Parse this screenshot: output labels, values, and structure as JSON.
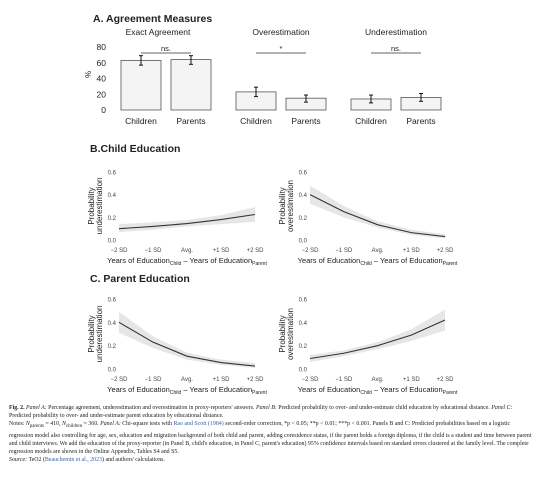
{
  "panel_a": {
    "title": "A. Agreement Measures",
    "y_axis_label": "%",
    "ticks": [
      "0",
      "20",
      "40",
      "60",
      "80"
    ]
  },
  "panel_b": {
    "title": "B.Child Education"
  },
  "panel_c": {
    "title": "C. Parent Education"
  },
  "x_tick_labels": [
    "−2 SD",
    "−1 SD",
    "Avg.",
    "+1 SD",
    "+2 SD"
  ],
  "y_tick_labels": [
    "0.0",
    "0.2",
    "0.4",
    "0.6"
  ],
  "x_label_main": "Years of Education",
  "x_label_sub1": "Child",
  "x_label_mid": " – Years of Education",
  "x_label_sub2": "Parent",
  "ylabel_under_1": "Probability",
  "ylabel_under_2": "underestimation",
  "ylabel_over_1": "Probability",
  "ylabel_over_2": "overestimation",
  "colors": {
    "bar_fill": "#f4f4f4",
    "bar_stroke": "#555555",
    "line": "#333333",
    "ci_band": "#e6e6e6"
  },
  "chart_data": [
    {
      "type": "bar",
      "panel": "A",
      "title": "A. Agreement Measures",
      "ylabel": "%",
      "ylim": [
        0,
        80
      ],
      "groups": [
        {
          "title": "Exact Agreement",
          "categories": [
            "Children",
            "Parents"
          ],
          "values": [
            63,
            64
          ],
          "ci": [
            [
              57,
              69
            ],
            [
              58,
              69
            ]
          ],
          "significance": "ns."
        },
        {
          "title": "Overestimation",
          "categories": [
            "Children",
            "Parents"
          ],
          "values": [
            23,
            15
          ],
          "ci": [
            [
              17,
              29
            ],
            [
              10,
              19
            ]
          ],
          "significance": "*"
        },
        {
          "title": "Underestimation",
          "categories": [
            "Children",
            "Parents"
          ],
          "values": [
            14,
            16
          ],
          "ci": [
            [
              9,
              19
            ],
            [
              11,
              21
            ]
          ],
          "significance": "ns."
        }
      ]
    },
    {
      "type": "line",
      "panel": "B",
      "subplot": "underestimation",
      "x": [
        -2,
        -1,
        0,
        1,
        2
      ],
      "x_tick_labels": [
        "−2 SD",
        "−1 SD",
        "Avg.",
        "+1 SD",
        "+2 SD"
      ],
      "xlabel": "Years of Education Child – Years of Education Parent",
      "ylabel": "Probability underestimation",
      "ylim": [
        0,
        0.6
      ],
      "series": [
        {
          "values": [
            0.1,
            0.12,
            0.145,
            0.18,
            0.225
          ],
          "lower": [
            0.07,
            0.09,
            0.12,
            0.14,
            0.16
          ],
          "upper": [
            0.14,
            0.155,
            0.175,
            0.22,
            0.29
          ]
        }
      ]
    },
    {
      "type": "line",
      "panel": "B",
      "subplot": "overestimation",
      "x": [
        -2,
        -1,
        0,
        1,
        2
      ],
      "x_tick_labels": [
        "−2 SD",
        "−1 SD",
        "Avg.",
        "+1 SD",
        "+2 SD"
      ],
      "xlabel": "Years of Education Child – Years of Education Parent",
      "ylabel": "Probability overestimation",
      "ylim": [
        0,
        0.6
      ],
      "series": [
        {
          "values": [
            0.4,
            0.25,
            0.135,
            0.065,
            0.03
          ],
          "lower": [
            0.32,
            0.2,
            0.11,
            0.045,
            0.015
          ],
          "upper": [
            0.48,
            0.3,
            0.165,
            0.09,
            0.05
          ]
        }
      ]
    },
    {
      "type": "line",
      "panel": "C",
      "subplot": "underestimation",
      "x": [
        -2,
        -1,
        0,
        1,
        2
      ],
      "x_tick_labels": [
        "−2 SD",
        "−1 SD",
        "Avg.",
        "+1 SD",
        "+2 SD"
      ],
      "xlabel": "Years of Education Child – Years of Education Parent",
      "ylabel": "Probability underestimation",
      "ylim": [
        0,
        0.6
      ],
      "series": [
        {
          "values": [
            0.4,
            0.23,
            0.11,
            0.055,
            0.025
          ],
          "lower": [
            0.31,
            0.18,
            0.08,
            0.035,
            0.01
          ],
          "upper": [
            0.49,
            0.28,
            0.14,
            0.08,
            0.05
          ]
        }
      ]
    },
    {
      "type": "line",
      "panel": "C",
      "subplot": "overestimation",
      "x": [
        -2,
        -1,
        0,
        1,
        2
      ],
      "x_tick_labels": [
        "−2 SD",
        "−1 SD",
        "Avg.",
        "+1 SD",
        "+2 SD"
      ],
      "xlabel": "Years of Education Child – Years of Education Parent",
      "ylabel": "Probability overestimation",
      "ylim": [
        0,
        0.6
      ],
      "series": [
        {
          "values": [
            0.09,
            0.135,
            0.2,
            0.29,
            0.42
          ],
          "lower": [
            0.06,
            0.11,
            0.17,
            0.24,
            0.33
          ],
          "upper": [
            0.12,
            0.16,
            0.23,
            0.34,
            0.51
          ]
        }
      ]
    }
  ],
  "caption": {
    "fig_label": "Fig. 2.",
    "panel_a_label": "Panel A:",
    "panel_a_text": " Percentage agreement, underestimation and overestimation in proxy-reporters' answers. ",
    "panel_b_label": "Panel B:",
    "panel_b_text": " Predicted probability to over- and under-estimate child education by educational distance. ",
    "panel_c_label": "Panel C:",
    "panel_c_text": " Predicted probability to over- and under-estimate parent education by educational distance.",
    "notes_label": "Notes: ",
    "n_parents": "N",
    "n_parents_sub": "parents",
    "n_parents_val": " = 410, ",
    "n_children": "N",
    "n_children_sub": "children",
    "n_children_val": " = 360. ",
    "notes_panel_a": "Panel A:",
    "notes_text_1": " Chi-square tests with ",
    "notes_link": "Rao and Scott (1984)",
    "notes_text_2": " second-order correction, *p < 0.05; **p < 0.01; ***p < 0.001. Panels B and C: Predicted probabilities based on a logistic regression model also controlling for age, sex, education and migration background of both child and parent, adding coresidence status, if the parent holds a foreign diploma, if the child is a student and time between parent and child interviews. We add the education of the proxy-reporter (in Panel B, child's education, in Panel C, parent's education) 95% confidence intervals based on standard errors clustered at the family level. The complete regression models are shown in the Online Appendix, Tables S4 and S5.",
    "source_label": "Source:",
    "source_text_1": " TeO2 (",
    "source_link": "Beauchemin et al., 2023",
    "source_text_2": ") and authors' calculations."
  }
}
